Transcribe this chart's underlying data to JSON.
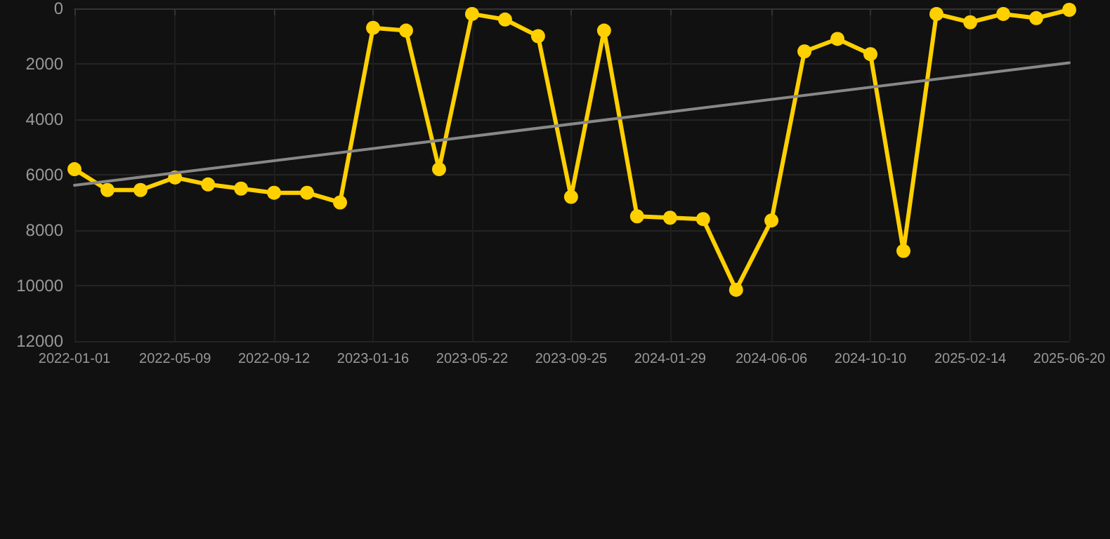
{
  "chart_data": {
    "type": "line",
    "x": [
      "2022-01-01",
      "2022-02-12",
      "2022-03-26",
      "2022-05-09",
      "2022-06-20",
      "2022-08-01",
      "2022-09-12",
      "2022-10-24",
      "2022-12-05",
      "2023-01-16",
      "2023-02-27",
      "2023-04-10",
      "2023-05-22",
      "2023-07-03",
      "2023-08-14",
      "2023-09-25",
      "2023-11-06",
      "2023-12-18",
      "2024-01-29",
      "2024-03-11",
      "2024-04-22",
      "2024-06-06",
      "2024-07-18",
      "2024-08-29",
      "2024-10-10",
      "2024-11-21",
      "2025-01-02",
      "2025-02-14",
      "2025-03-28",
      "2025-05-09",
      "2025-06-20"
    ],
    "series": [
      {
        "color": "#ffd000",
        "values": [
          5800,
          6550,
          6550,
          6100,
          6350,
          6500,
          6650,
          6650,
          7000,
          700,
          800,
          5800,
          200,
          400,
          1000,
          6800,
          800,
          7500,
          7550,
          7600,
          10150,
          7650,
          1550,
          1100,
          1650,
          8750,
          200,
          500,
          200,
          350,
          50
        ]
      },
      {
        "type": "line",
        "color": "#888888",
        "x": [
          "2022-01-01",
          "2025-06-20"
        ],
        "values": [
          6380,
          1960
        ],
        "marker": "none"
      }
    ],
    "ylim": [
      12000,
      0
    ],
    "yticks": [
      0,
      2000,
      4000,
      6000,
      8000,
      10000,
      12000
    ],
    "xlim": [
      "2022-01-01",
      "2025-06-20"
    ],
    "xticks": [
      "2022-01-01",
      "2022-05-09",
      "2022-09-12",
      "2023-01-16",
      "2023-05-22",
      "2023-09-25",
      "2024-01-29",
      "2024-06-06",
      "2024-10-10",
      "2025-02-14",
      "2025-06-20"
    ],
    "grid": true,
    "marker": "circle",
    "line_style": "solid"
  }
}
